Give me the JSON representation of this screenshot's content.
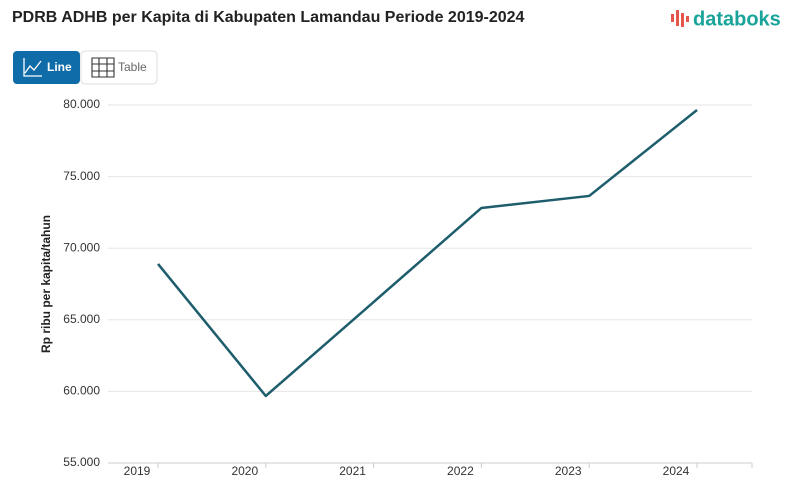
{
  "chart_data": {
    "type": "line",
    "title": "PDRB ADHB per Kapita di Kabupaten Lamandau Periode 2019-2024",
    "logo": "databoks",
    "buttons": [
      "Line",
      "Table"
    ],
    "y_label": "Rp ribu per kapita/tahun",
    "categories": [
      "2019",
      "2020",
      "2021",
      "2022",
      "2023",
      "2024"
    ],
    "series": [
      {
        "name": "PDRB ADHB per Kapita",
        "color": "#1d5d6c",
        "values": [
          68900,
          59680,
          66240,
          72810,
          73650,
          79650
        ]
      }
    ],
    "ylim": [
      55000,
      80000
    ],
    "yticks": [
      {
        "value": 55000,
        "label": "55.000"
      },
      {
        "value": 60000,
        "label": "60.000"
      },
      {
        "value": 65000,
        "label": "65.000"
      },
      {
        "value": 70000,
        "label": "70.000"
      },
      {
        "value": 75000,
        "label": "75.000"
      },
      {
        "value": 80000,
        "label": "80.000"
      }
    ],
    "grid": true
  }
}
